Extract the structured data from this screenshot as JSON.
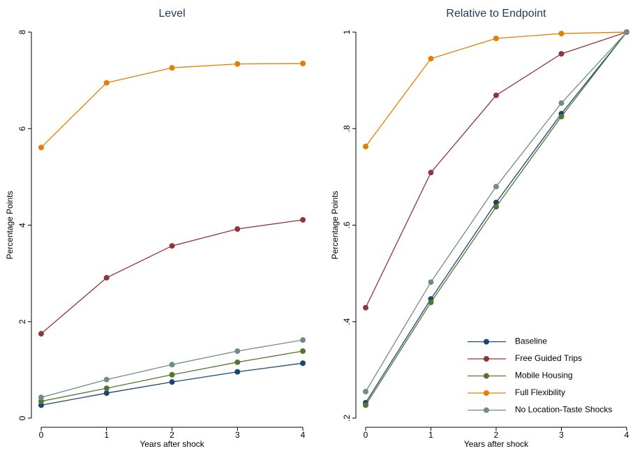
{
  "chart_data": [
    {
      "type": "line",
      "title": "Level",
      "xlabel": "Years after shock",
      "ylabel": "Percentage Points",
      "x": [
        0,
        1,
        2,
        3,
        4
      ],
      "xlim": [
        0,
        4
      ],
      "xticks": [
        0,
        1,
        2,
        3,
        4
      ],
      "ylim": [
        0,
        8
      ],
      "yticks": [
        0,
        2,
        4,
        6,
        8
      ],
      "series": [
        {
          "color": "#1a476f",
          "values": [
            0.27,
            0.52,
            0.75,
            0.96,
            1.14
          ]
        },
        {
          "color": "#90353b",
          "values": [
            1.75,
            2.91,
            3.57,
            3.92,
            4.11
          ]
        },
        {
          "color": "#55752f",
          "values": [
            0.35,
            0.62,
            0.9,
            1.16,
            1.39
          ]
        },
        {
          "color": "#e37e00",
          "values": [
            5.61,
            6.95,
            7.26,
            7.34,
            7.35
          ]
        },
        {
          "color": "#6e8e84",
          "values": [
            0.43,
            0.8,
            1.11,
            1.39,
            1.62
          ]
        }
      ]
    },
    {
      "type": "line",
      "title": "Relative to Endpoint",
      "xlabel": "Years after shock",
      "ylabel": "Percentage Points",
      "x": [
        0,
        1,
        2,
        3,
        4
      ],
      "xlim": [
        0,
        4
      ],
      "xticks": [
        0,
        1,
        2,
        3,
        4
      ],
      "ylim": [
        0.2,
        1
      ],
      "yticks": [
        {
          "value": 0.2,
          "label": ".2"
        },
        {
          "value": 0.4,
          "label": ".4"
        },
        {
          "value": 0.6,
          "label": ".6"
        },
        {
          "value": 0.8,
          "label": ".8"
        },
        1
      ],
      "legend": "bottom-right",
      "series": [
        {
          "name": "Baseline",
          "color": "#1a476f",
          "values": [
            0.232,
            0.447,
            0.647,
            0.831,
            1
          ]
        },
        {
          "name": "Free Guided Trips",
          "color": "#90353b",
          "values": [
            0.429,
            0.709,
            0.869,
            0.955,
            1
          ]
        },
        {
          "name": "Mobile Housing",
          "color": "#55752f",
          "values": [
            0.227,
            0.44,
            0.638,
            0.825,
            1
          ]
        },
        {
          "name": "Full Flexibility",
          "color": "#e37e00",
          "values": [
            0.763,
            0.945,
            0.987,
            0.997,
            1
          ]
        },
        {
          "name": "No Location-Taste Shocks",
          "color": "#6e8e84",
          "values": [
            0.255,
            0.482,
            0.68,
            0.853,
            1
          ]
        }
      ]
    }
  ]
}
